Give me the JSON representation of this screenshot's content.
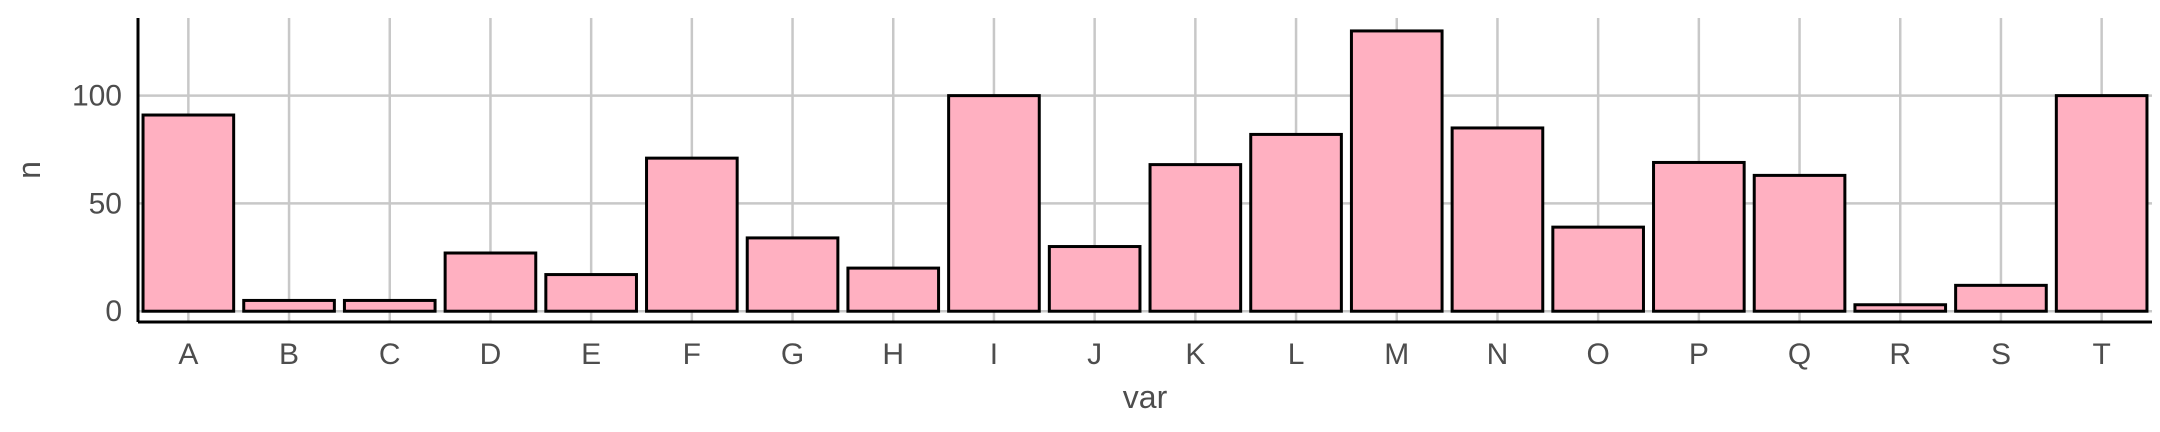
{
  "chart_data": {
    "type": "bar",
    "xlabel": "var",
    "ylabel": "n",
    "categories": [
      "A",
      "B",
      "C",
      "D",
      "E",
      "F",
      "G",
      "H",
      "I",
      "J",
      "K",
      "L",
      "M",
      "N",
      "O",
      "P",
      "Q",
      "R",
      "S",
      "T"
    ],
    "values": [
      91,
      5,
      5,
      27,
      17,
      71,
      34,
      20,
      100,
      30,
      68,
      82,
      130,
      85,
      39,
      69,
      63,
      3,
      12,
      100
    ],
    "ylim": [
      -5,
      136
    ],
    "yticks": [
      0,
      50,
      100
    ],
    "grid": true,
    "bar_fill": "#ffb0c1",
    "bar_stroke": "#000000",
    "grid_color": "#c8c8c8"
  }
}
